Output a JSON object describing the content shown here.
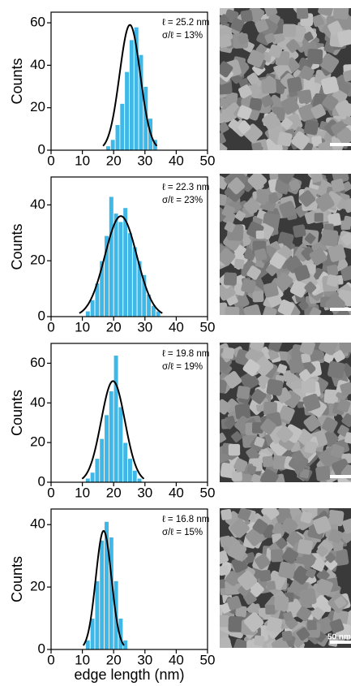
{
  "chart_data": [
    {
      "type": "histogram",
      "color": "#3fb8e8",
      "ylabel": "Counts",
      "annotations": [
        "ℓ = 25.2 nm",
        "σ/ℓ = 13%"
      ],
      "bins": [
        17.5,
        19,
        20.5,
        22,
        23.5,
        25,
        26.5,
        28,
        29.5,
        31,
        32.5,
        34
      ],
      "values": [
        2,
        5,
        12,
        22,
        37,
        52,
        58,
        45,
        30,
        15,
        5
      ],
      "fit": {
        "center": 25.2,
        "width": 3.3,
        "peak": 59
      },
      "xlim": [
        0,
        50
      ],
      "xticks": [
        0,
        10,
        20,
        30,
        40,
        50
      ],
      "ylim": [
        0,
        65
      ],
      "yticks": [
        0,
        20,
        40,
        60
      ]
    },
    {
      "type": "histogram",
      "color": "#3fb8e8",
      "ylabel": "Counts",
      "annotations": [
        "ℓ = 22.3 nm",
        "σ/ℓ = 23%"
      ],
      "bins": [
        11,
        12.5,
        14,
        15.5,
        17,
        18.5,
        20,
        21.5,
        23,
        24.5,
        26,
        27.5,
        29,
        30.5,
        32,
        33.5,
        35
      ],
      "values": [
        2,
        6,
        12,
        20,
        29,
        43,
        37,
        34,
        39,
        30,
        25,
        20,
        15,
        8,
        4,
        2
      ],
      "fit": {
        "center": 22.3,
        "width": 5.1,
        "peak": 36
      },
      "xlim": [
        0,
        50
      ],
      "xticks": [
        0,
        10,
        20,
        30,
        40,
        50
      ],
      "ylim": [
        0,
        50
      ],
      "yticks": [
        0,
        20,
        40
      ]
    },
    {
      "type": "histogram",
      "color": "#3fb8e8",
      "ylabel": "Counts",
      "annotations": [
        "ℓ = 19.8 nm",
        "σ/ℓ = 19%"
      ],
      "bins": [
        11,
        12.5,
        14,
        15.5,
        17,
        18.5,
        20,
        21.5,
        23,
        24.5,
        26,
        27.5,
        29
      ],
      "values": [
        2,
        5,
        12,
        22,
        34,
        46,
        64,
        38,
        20,
        12,
        6,
        2
      ],
      "fit": {
        "center": 19.8,
        "width": 3.8,
        "peak": 51
      },
      "xlim": [
        0,
        50
      ],
      "xticks": [
        0,
        10,
        20,
        30,
        40,
        50
      ],
      "ylim": [
        0,
        70
      ],
      "yticks": [
        0,
        20,
        40,
        60
      ]
    },
    {
      "type": "histogram",
      "color": "#3fb8e8",
      "ylabel": "Counts",
      "xlabel": "edge length (nm)",
      "annotations": [
        "ℓ = 16.8 nm",
        "σ/ℓ = 15%"
      ],
      "bins": [
        11,
        12.5,
        14,
        15.5,
        17,
        18.5,
        20,
        21.5,
        23,
        24.5
      ],
      "values": [
        3,
        10,
        22,
        35,
        41,
        36,
        22,
        10,
        3
      ],
      "fit": {
        "center": 16.8,
        "width": 2.5,
        "peak": 38
      },
      "xlim": [
        0,
        50
      ],
      "xticks": [
        0,
        10,
        20,
        30,
        40,
        50
      ],
      "ylim": [
        0,
        45
      ],
      "yticks": [
        0,
        20,
        40
      ]
    }
  ],
  "scale_bar_label": "50 nm"
}
